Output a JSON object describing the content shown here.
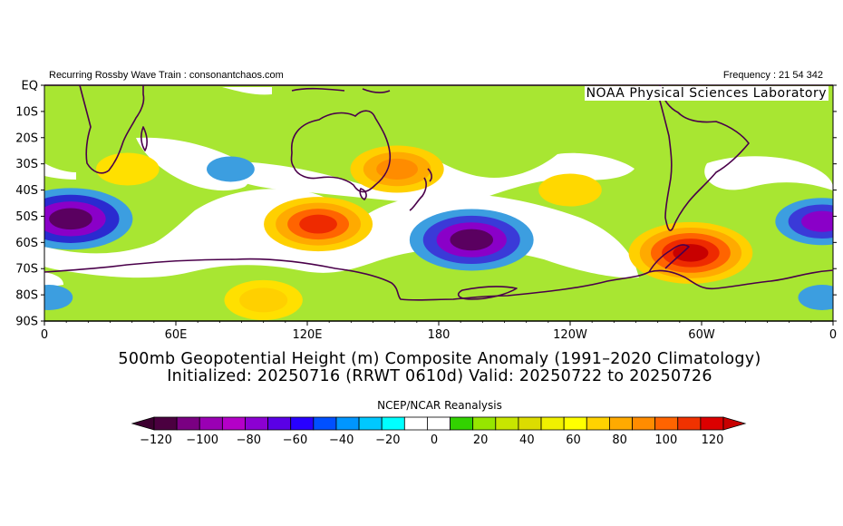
{
  "header": {
    "left_text": "Recurring Rossby Wave Train : consonantchaos.com",
    "right_text": "Frequency : 21 54 342",
    "lab_text": "NOAA Physical Sciences Laboratory"
  },
  "titles": {
    "line1": "500mb Geopotential Height (m) Composite Anomaly (1991–2020 Climatology)",
    "line2": "Initialized: 20250716 (RRWT 0610d) Valid: 20250722 to 20250726",
    "reanalysis": "NCEP/NCAR Reanalysis"
  },
  "axes": {
    "lat_labels": [
      "EQ",
      "10S",
      "20S",
      "30S",
      "40S",
      "50S",
      "60S",
      "70S",
      "80S",
      "90S"
    ],
    "lon_labels": [
      "0",
      "60E",
      "120E",
      "180",
      "120W",
      "60W",
      "0"
    ]
  },
  "colorbar": {
    "labels": [
      "-120",
      "-100",
      "-80",
      "-60",
      "-40",
      "-20",
      "0",
      "20",
      "40",
      "60",
      "80",
      "100",
      "120"
    ],
    "colors": [
      "#4b0040",
      "#7a0082",
      "#9a00b4",
      "#b400c8",
      "#8c00d2",
      "#5a00e6",
      "#2800ff",
      "#0050ff",
      "#0096ff",
      "#00c8ff",
      "#00ffff",
      "#ffffff",
      "#ffffff",
      "#32d200",
      "#96e600",
      "#c8e600",
      "#dcdc00",
      "#f0f000",
      "#ffff00",
      "#ffd200",
      "#ffaa00",
      "#ff8c00",
      "#ff6400",
      "#f03200",
      "#dc0000"
    ]
  },
  "map": {
    "extent": {
      "lon": [
        0,
        360
      ],
      "lat": [
        0,
        -90
      ]
    },
    "anomalies": [
      {
        "lon": 12,
        "lat": -51,
        "value": -120,
        "colors": [
          "#3c9ee0",
          "#2a2ad0",
          "#8a00c8",
          "#5a0060"
        ]
      },
      {
        "lon": 195,
        "lat": -59,
        "value": -120,
        "colors": [
          "#3c9ee0",
          "#3a3ad8",
          "#8a00c8",
          "#5a0060"
        ]
      },
      {
        "lon": 355,
        "lat": -52,
        "value": -80,
        "colors": [
          "#3c9ee0",
          "#3a3ad8",
          "#8a00c8"
        ]
      },
      {
        "lon": 125,
        "lat": -53,
        "value": 100,
        "colors": [
          "#ffd000",
          "#ffaa00",
          "#ff6400",
          "#ee2a00"
        ]
      },
      {
        "lon": 295,
        "lat": -64,
        "value": 120,
        "colors": [
          "#ffd000",
          "#ffaa00",
          "#ff6400",
          "#ee2a00",
          "#c80000"
        ]
      },
      {
        "lon": 161,
        "lat": -32,
        "value": 80,
        "colors": [
          "#ffd000",
          "#ffaa00",
          "#ff8c00"
        ]
      },
      {
        "lon": 38,
        "lat": -32,
        "value": 40,
        "colors": [
          "#ffe000"
        ]
      },
      {
        "lon": 240,
        "lat": -40,
        "value": 40,
        "colors": [
          "#ffd800"
        ]
      },
      {
        "lon": 100,
        "lat": -82,
        "value": 60,
        "colors": [
          "#ffe000",
          "#ffd000"
        ]
      },
      {
        "lon": 85,
        "lat": -32,
        "value": -20,
        "colors": [
          "#3c9ee0"
        ]
      },
      {
        "lon": 2,
        "lat": -81,
        "value": -20,
        "colors": [
          "#3c9ee0"
        ]
      },
      {
        "lon": 355,
        "lat": -81,
        "value": -20,
        "colors": [
          "#3c9ee0"
        ]
      }
    ]
  }
}
